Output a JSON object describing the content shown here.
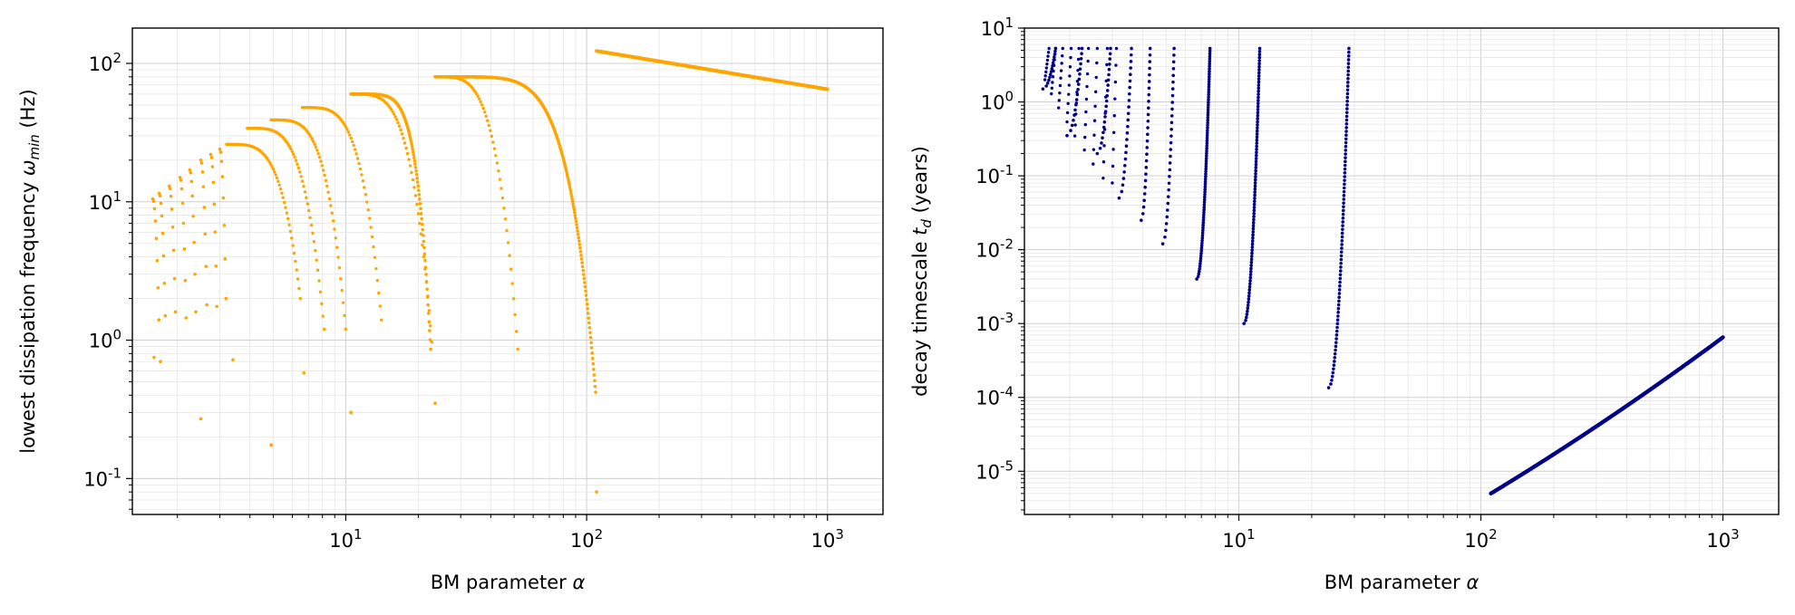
{
  "chart_data": [
    {
      "type": "scatter",
      "xlabel": "BM parameter α",
      "ylabel": "lowest dissipation frequency ω_min (Hz)",
      "xscale": "log",
      "yscale": "log",
      "xlim": [
        1.3,
        1700
      ],
      "ylim": [
        0.055,
        180
      ],
      "xticks": [
        10,
        100,
        1000
      ],
      "yticks": [
        0.1,
        1,
        10,
        100
      ],
      "grid": "major and minor",
      "color": "#FFA500",
      "series": [
        {
          "branch": "top",
          "x": [
            2.4,
            3.2,
            4.0,
            5.0,
            6.5,
            8.5,
            10.5,
            13,
            16,
            20,
            23.5
          ],
          "y": [
            20,
            26,
            32,
            38,
            46,
            54,
            60,
            52,
            43,
            30,
            5
          ]
        },
        {
          "branch": "top",
          "x": [
            23.5,
            30,
            40,
            55,
            70,
            85,
            95,
            103,
            108,
            110
          ],
          "y": [
            80,
            72,
            63,
            50,
            38,
            25,
            13,
            3.5,
            1.0,
            0.42
          ]
        },
        {
          "branch": "top",
          "x": [
            110,
            200,
            400,
            700,
            1000
          ],
          "y": [
            123,
            108,
            89,
            74,
            65
          ]
        }
      ],
      "isolated_points": [
        {
          "x": 1.6,
          "y": 0.75
        },
        {
          "x": 1.7,
          "y": 0.7
        },
        {
          "x": 2.5,
          "y": 0.27
        },
        {
          "x": 3.4,
          "y": 0.72
        },
        {
          "x": 4.9,
          "y": 0.175
        },
        {
          "x": 6.7,
          "y": 0.58
        },
        {
          "x": 10.5,
          "y": 0.3
        },
        {
          "x": 23.5,
          "y": 0.35
        },
        {
          "x": 110,
          "y": 0.08
        }
      ]
    },
    {
      "type": "scatter",
      "xlabel": "BM parameter α",
      "ylabel": "decay timescale t_d (years)",
      "xscale": "log",
      "yscale": "log",
      "xlim": [
        1.3,
        1700
      ],
      "ylim": [
        2.6e-06,
        10
      ],
      "xticks": [
        10,
        100,
        1000
      ],
      "yticks": [
        1e-05,
        0.0001,
        0.001,
        0.01,
        0.1,
        1,
        10
      ],
      "grid": "major and minor",
      "color": "#00008B",
      "branches": [
        {
          "x_start": 1.55,
          "x_end": 1.75,
          "y_start": 1.5,
          "y_end": 5.3
        },
        {
          "x_start": 1.95,
          "x_end": 2.25,
          "y_start": 0.35,
          "y_end": 5.3
        },
        {
          "x_start": 2.6,
          "x_end": 2.95,
          "y_start": 0.2,
          "y_end": 5.3
        },
        {
          "x_start": 3.2,
          "x_end": 3.6,
          "y_start": 0.05,
          "y_end": 5.3
        },
        {
          "x_start": 3.95,
          "x_end": 4.3,
          "y_start": 0.025,
          "y_end": 5.3
        },
        {
          "x_start": 4.85,
          "x_end": 5.4,
          "y_start": 0.012,
          "y_end": 5.3
        },
        {
          "x_start": 6.7,
          "x_end": 7.6,
          "y_start": 0.004,
          "y_end": 5.3
        },
        {
          "x_start": 10.5,
          "x_end": 12.2,
          "y_start": 0.001,
          "y_end": 5.3
        },
        {
          "x_start": 23.5,
          "x_end": 28.5,
          "y_start": 0.000135,
          "y_end": 5.3
        },
        {
          "x_start": 110,
          "x_end": 1000,
          "y_start": 5e-06,
          "y_end": 0.00065
        }
      ]
    }
  ],
  "axes_titles": {
    "left_xlabel_text": "BM parameter α",
    "right_xlabel_text": "BM parameter α"
  }
}
